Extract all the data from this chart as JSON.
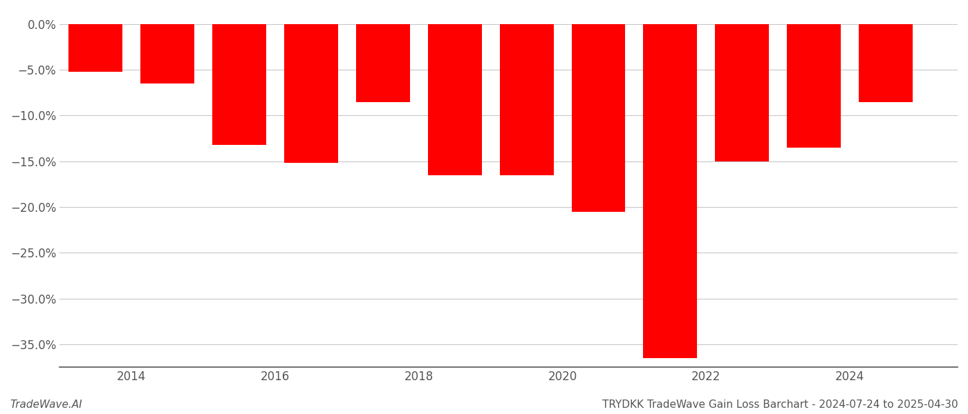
{
  "years": [
    2013,
    2014,
    2015,
    2016,
    2017,
    2018,
    2019,
    2020,
    2021,
    2022,
    2023,
    2024
  ],
  "bar_centers": [
    2013.5,
    2014.5,
    2015.5,
    2016.5,
    2017.5,
    2018.5,
    2019.5,
    2020.5,
    2021.5,
    2022.5,
    2023.5,
    2024.5
  ],
  "values": [
    -5.2,
    -6.5,
    -13.2,
    -15.2,
    -8.5,
    -16.5,
    -16.5,
    -20.5,
    -36.5,
    -15.0,
    -13.5,
    -8.5
  ],
  "bar_color": "#ff0000",
  "background_color": "#ffffff",
  "grid_color": "#c8c8c8",
  "axis_color": "#555555",
  "tick_color": "#555555",
  "ylim": [
    -37.5,
    1.5
  ],
  "yticks": [
    0.0,
    -5.0,
    -10.0,
    -15.0,
    -20.0,
    -25.0,
    -30.0,
    -35.0
  ],
  "xticks": [
    2014,
    2016,
    2018,
    2020,
    2022,
    2024
  ],
  "xlim": [
    2013.0,
    2025.5
  ],
  "footer_left": "TradeWave.AI",
  "footer_right": "TRYDKK TradeWave Gain Loss Barchart - 2024-07-24 to 2025-04-30",
  "bar_width": 0.75
}
